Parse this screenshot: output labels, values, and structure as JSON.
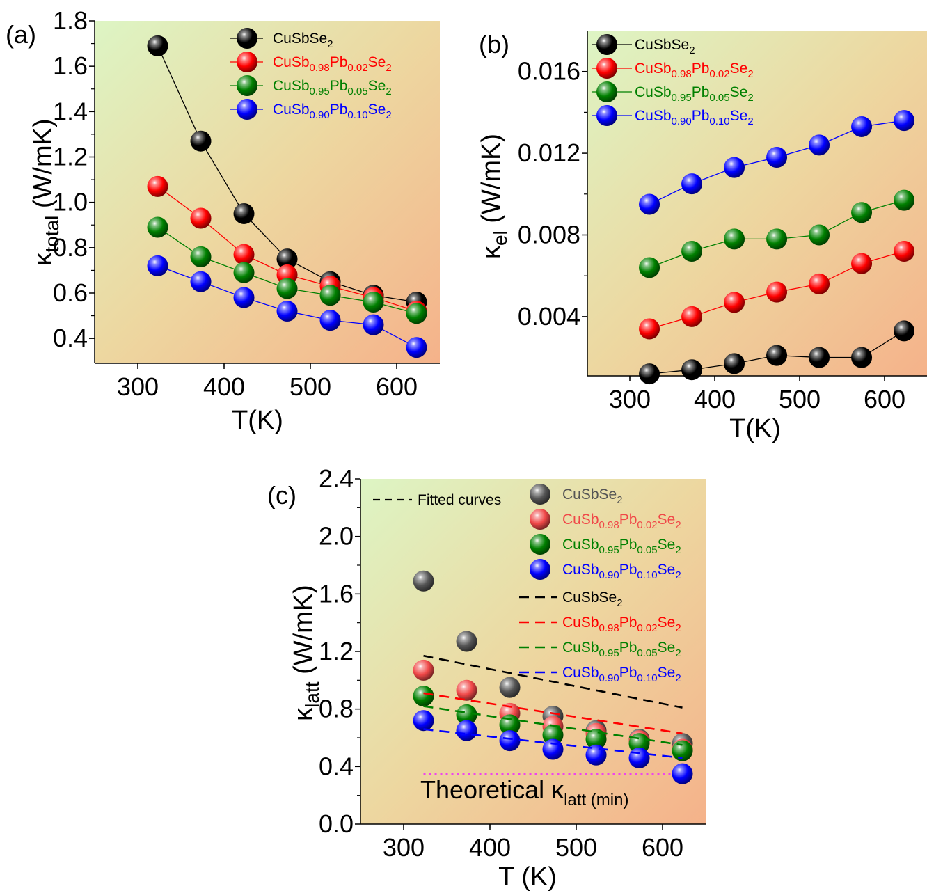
{
  "chart_data": [
    {
      "panel_label": "(a)",
      "type": "line",
      "xlabel": "T(K)",
      "ylabel_main": "κ",
      "ylabel_sub": "total",
      "ylabel_unit": " (W/mK)",
      "xlim": [
        250,
        650
      ],
      "ylim": [
        0.29,
        1.8
      ],
      "xticks": [
        300,
        400,
        500,
        600
      ],
      "yticks": [
        0.4,
        0.6,
        0.8,
        1.0,
        1.2,
        1.4,
        1.6,
        1.8
      ],
      "ytick_labels": [
        "0.4",
        "0.6",
        "0.8",
        "1.0",
        "1.2",
        "1.4",
        "1.6",
        "1.8"
      ],
      "x": [
        323,
        373,
        423,
        473,
        523,
        573,
        623
      ],
      "legend_position": "top-right",
      "series": [
        {
          "parts": [
            [
              "CuSbSe",
              ""
            ],
            [
              "2",
              "sub"
            ]
          ],
          "color": "#000000",
          "values": [
            1.69,
            1.27,
            0.95,
            0.75,
            0.65,
            0.59,
            0.56
          ]
        },
        {
          "parts": [
            [
              "CuSb",
              ""
            ],
            [
              "0.98",
              "sub"
            ],
            [
              "Pb",
              ""
            ],
            [
              "0.02",
              "sub"
            ],
            [
              "Se",
              ""
            ],
            [
              "2",
              "sub"
            ]
          ],
          "color": "#ff0000",
          "values": [
            1.07,
            0.93,
            0.77,
            0.68,
            0.63,
            0.58,
            0.52
          ]
        },
        {
          "parts": [
            [
              "CuSb",
              ""
            ],
            [
              "0.95",
              "sub"
            ],
            [
              "Pb",
              ""
            ],
            [
              "0.05",
              "sub"
            ],
            [
              "Se",
              ""
            ],
            [
              "2",
              "sub"
            ]
          ],
          "color": "#008000",
          "values": [
            0.89,
            0.76,
            0.69,
            0.62,
            0.59,
            0.56,
            0.51
          ]
        },
        {
          "parts": [
            [
              "CuSb",
              ""
            ],
            [
              "0.90",
              "sub"
            ],
            [
              "Pb",
              ""
            ],
            [
              "0.10",
              "sub"
            ],
            [
              "Se",
              ""
            ],
            [
              "2",
              "sub"
            ]
          ],
          "color": "#0000ff",
          "values": [
            0.72,
            0.65,
            0.58,
            0.52,
            0.48,
            0.46,
            0.36
          ]
        }
      ]
    },
    {
      "panel_label": "(b)",
      "type": "line",
      "xlabel": "T(K)",
      "ylabel_main": "κ",
      "ylabel_sub": "el",
      "ylabel_unit": " (W/mK)",
      "xlim": [
        250,
        650
      ],
      "ylim": [
        0.0011,
        0.018
      ],
      "xticks": [
        300,
        400,
        500,
        600
      ],
      "yticks": [
        0.004,
        0.008,
        0.012,
        0.016
      ],
      "ytick_labels": [
        "0.004",
        "0.008",
        "0.012",
        "0.016"
      ],
      "x": [
        323,
        373,
        423,
        473,
        523,
        573,
        623
      ],
      "legend_position": "top-left",
      "series": [
        {
          "parts": [
            [
              "CuSbSe",
              ""
            ],
            [
              "2",
              "sub"
            ]
          ],
          "color": "#000000",
          "values": [
            0.0012,
            0.0014,
            0.0017,
            0.0021,
            0.002,
            0.002,
            0.0033
          ]
        },
        {
          "parts": [
            [
              "CuSb",
              ""
            ],
            [
              "0.98",
              "sub"
            ],
            [
              "Pb",
              ""
            ],
            [
              "0.02",
              "sub"
            ],
            [
              "Se",
              ""
            ],
            [
              "2",
              "sub"
            ]
          ],
          "color": "#ff0000",
          "values": [
            0.0034,
            0.004,
            0.0047,
            0.0052,
            0.0056,
            0.0066,
            0.0072
          ]
        },
        {
          "parts": [
            [
              "CuSb",
              ""
            ],
            [
              "0.95",
              "sub"
            ],
            [
              "Pb",
              ""
            ],
            [
              "0.05",
              "sub"
            ],
            [
              "Se",
              ""
            ],
            [
              "2",
              "sub"
            ]
          ],
          "color": "#008000",
          "values": [
            0.0064,
            0.0072,
            0.0078,
            0.0078,
            0.008,
            0.0091,
            0.0097
          ]
        },
        {
          "parts": [
            [
              "CuSb",
              ""
            ],
            [
              "0.90",
              "sub"
            ],
            [
              "Pb",
              ""
            ],
            [
              "0.10",
              "sub"
            ],
            [
              "Se",
              ""
            ],
            [
              "2",
              "sub"
            ]
          ],
          "color": "#0000ff",
          "values": [
            0.0095,
            0.0105,
            0.0113,
            0.0118,
            0.0124,
            0.0133,
            0.0136
          ]
        }
      ]
    },
    {
      "panel_label": "(c)",
      "type": "scatter",
      "xlabel": "T (K)",
      "ylabel_main": "κ",
      "ylabel_sub": "latt",
      "ylabel_unit": " (W/mK)",
      "xlim": [
        250,
        650
      ],
      "ylim": [
        0.0,
        2.4
      ],
      "xticks": [
        300,
        400,
        500,
        600
      ],
      "yticks": [
        0.0,
        0.4,
        0.8,
        1.2,
        1.6,
        2.0,
        2.4
      ],
      "ytick_labels": [
        "0.0",
        "0.4",
        "0.8",
        "1.2",
        "1.6",
        "2.0",
        "2.4"
      ],
      "x": [
        323,
        373,
        423,
        473,
        523,
        573,
        623
      ],
      "fit_legend_label": "Fitted curves",
      "series": [
        {
          "parts": [
            [
              "CuSbSe",
              ""
            ],
            [
              "2",
              "sub"
            ]
          ],
          "color": "#555555",
          "values": [
            1.69,
            1.27,
            0.95,
            0.75,
            0.65,
            0.59,
            0.56
          ],
          "fit_color": "#000000",
          "fit": [
            1.17,
            0.81
          ]
        },
        {
          "parts": [
            [
              "CuSb",
              ""
            ],
            [
              "0.98",
              "sub"
            ],
            [
              "Pb",
              ""
            ],
            [
              "0.02",
              "sub"
            ],
            [
              "Se",
              ""
            ],
            [
              "2",
              "sub"
            ]
          ],
          "color": "#f04848",
          "values": [
            1.07,
            0.93,
            0.77,
            0.68,
            0.63,
            0.58,
            0.52
          ],
          "fit_color": "#ff0000",
          "fit": [
            0.91,
            0.63
          ]
        },
        {
          "parts": [
            [
              "CuSb",
              ""
            ],
            [
              "0.95",
              "sub"
            ],
            [
              "Pb",
              ""
            ],
            [
              "0.05",
              "sub"
            ],
            [
              "Se",
              ""
            ],
            [
              "2",
              "sub"
            ]
          ],
          "color": "#008000",
          "values": [
            0.89,
            0.76,
            0.69,
            0.62,
            0.59,
            0.56,
            0.51
          ],
          "fit_color": "#008000",
          "fit": [
            0.82,
            0.55
          ]
        },
        {
          "parts": [
            [
              "CuSb",
              ""
            ],
            [
              "0.90",
              "sub"
            ],
            [
              "Pb",
              ""
            ],
            [
              "0.10",
              "sub"
            ],
            [
              "Se",
              ""
            ],
            [
              "2",
              "sub"
            ]
          ],
          "color": "#0000ff",
          "values": [
            0.72,
            0.65,
            0.58,
            0.52,
            0.48,
            0.46,
            0.35
          ],
          "fit_color": "#0000ff",
          "fit": [
            0.66,
            0.46
          ]
        }
      ],
      "min_line": {
        "value": 0.35,
        "x_range": [
          323,
          623
        ],
        "color": "#ee44ee",
        "label_main": "Theoretical κ",
        "label_sub": "latt (min)"
      }
    }
  ]
}
